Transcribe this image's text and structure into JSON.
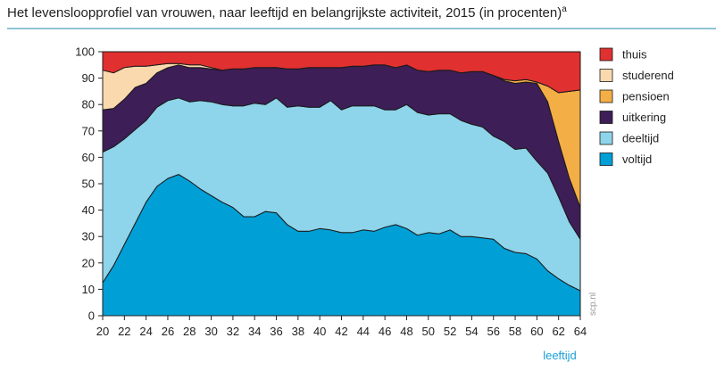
{
  "chart_data": {
    "type": "area",
    "title": "Het levensloopprofiel van vrouwen, naar leeftijd en belangrijkste activiteit, 2015 (in procenten)",
    "title_sup": "a",
    "xlabel": "leeftijd",
    "ylabel": "",
    "source": "scp.nl",
    "stacked": true,
    "xlim": [
      20,
      64
    ],
    "ylim": [
      0,
      100
    ],
    "x_ticks": [
      20,
      22,
      24,
      26,
      28,
      30,
      32,
      34,
      36,
      38,
      40,
      42,
      44,
      46,
      48,
      50,
      52,
      54,
      56,
      58,
      60,
      62,
      64
    ],
    "y_ticks": [
      0,
      10,
      20,
      30,
      40,
      50,
      60,
      70,
      80,
      90,
      100
    ],
    "legend_position": "right",
    "x": [
      20,
      21,
      22,
      23,
      24,
      25,
      26,
      27,
      28,
      29,
      30,
      31,
      32,
      33,
      34,
      35,
      36,
      37,
      38,
      39,
      40,
      41,
      42,
      43,
      44,
      45,
      46,
      47,
      48,
      49,
      50,
      51,
      52,
      53,
      54,
      55,
      56,
      57,
      58,
      59,
      60,
      61,
      62,
      63,
      64
    ],
    "series": [
      {
        "name": "voltijd",
        "color": "#009fd6",
        "values": [
          12.5,
          19,
          27,
          35,
          43,
          49,
          52,
          53.5,
          51,
          48,
          45.5,
          43,
          41,
          37.5,
          37.5,
          39.5,
          39,
          34.5,
          32,
          32,
          33,
          32.5,
          31.5,
          31.5,
          32.5,
          32,
          33.5,
          34.5,
          33,
          30.5,
          31.5,
          31,
          32.5,
          30,
          30,
          29.5,
          29,
          25.5,
          24,
          23.5,
          21.5,
          17,
          14,
          11.5,
          9.5
        ]
      },
      {
        "name": "deeltijd",
        "color": "#8ed4ea",
        "values": [
          49.5,
          45,
          40,
          35.5,
          31,
          30,
          29.5,
          29,
          30,
          33.5,
          35.5,
          37,
          38.5,
          42,
          43,
          40.5,
          43.5,
          44.5,
          47.5,
          47,
          46,
          49,
          46.5,
          48,
          47,
          47.5,
          44.5,
          43.5,
          47,
          46.5,
          44.5,
          45.5,
          44,
          44,
          42.5,
          42,
          39,
          40.5,
          39,
          40,
          37,
          37,
          31,
          24,
          19.5
        ]
      },
      {
        "name": "uitkering",
        "color": "#3d1e57",
        "values": [
          16,
          14.5,
          15,
          16,
          14,
          13,
          12.5,
          12.5,
          13,
          12.5,
          12.5,
          13,
          14,
          14,
          13.5,
          14,
          11.5,
          14.5,
          14,
          15,
          15,
          12.5,
          16,
          15,
          15,
          15.5,
          17,
          16,
          15,
          16,
          16.5,
          16.5,
          16.5,
          18,
          20,
          21,
          23,
          23,
          25,
          25,
          29.5,
          27,
          21,
          16.5,
          12
        ]
      },
      {
        "name": "pensioen",
        "color": "#f4ae46",
        "values": [
          0,
          0,
          0,
          0,
          0,
          0,
          0,
          0,
          0,
          0,
          0,
          0,
          0,
          0,
          0,
          0,
          0,
          0,
          0,
          0,
          0,
          0,
          0,
          0,
          0,
          0,
          0,
          0,
          0,
          0,
          0,
          0,
          0,
          0,
          0,
          0,
          0,
          0.5,
          1,
          1,
          0.5,
          6,
          18.5,
          33,
          44.5
        ]
      },
      {
        "name": "studerend",
        "color": "#fad9ae",
        "values": [
          15,
          13.5,
          12,
          8,
          6.5,
          3,
          1.5,
          0.5,
          1,
          1,
          0.5,
          0,
          0,
          0,
          0,
          0,
          0,
          0,
          0,
          0,
          0,
          0,
          0,
          0,
          0,
          0,
          0,
          0,
          0,
          0,
          0,
          0,
          0,
          0,
          0,
          0,
          0,
          0,
          0,
          0,
          0,
          0,
          0,
          0,
          0
        ]
      },
      {
        "name": "thuis",
        "color": "#e03030",
        "values": [
          7,
          8,
          6,
          5.5,
          5.5,
          5,
          4.5,
          4.5,
          5,
          5,
          6,
          7,
          6.5,
          6.5,
          6,
          6,
          6,
          6.5,
          6.5,
          6,
          6,
          6,
          6,
          5.5,
          5.5,
          5,
          5,
          6,
          5,
          7,
          7.5,
          7,
          7,
          8,
          7.5,
          7.5,
          9,
          10.5,
          11,
          10.5,
          11.5,
          13,
          15.5,
          15,
          14.5
        ]
      }
    ]
  }
}
